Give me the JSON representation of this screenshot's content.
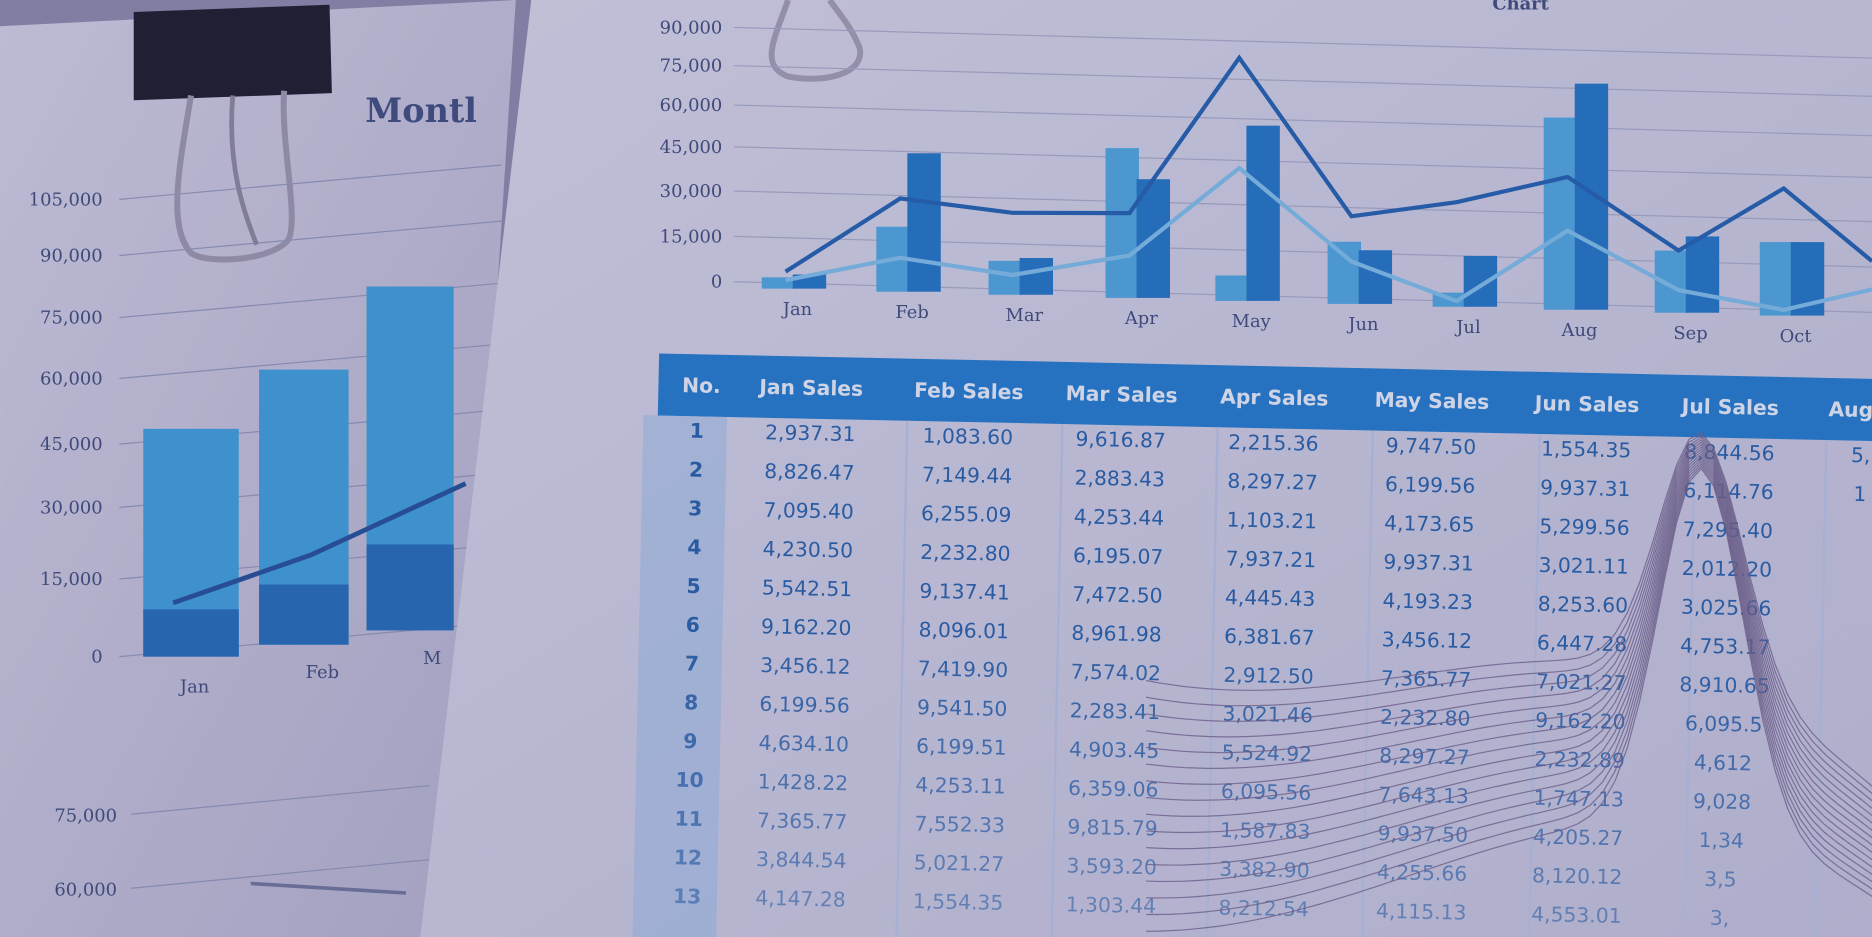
{
  "left_sheet": {
    "title": "Montl",
    "y_ticks": [
      "105,000",
      "90,000",
      "75,000",
      "60,000",
      "45,000",
      "30,000",
      "15,000",
      "0"
    ],
    "x_ticks": [
      "Jan",
      "Feb",
      "M"
    ],
    "lower_y_ticks": [
      "75,000",
      "60,000"
    ],
    "bars": [
      {
        "month": "Jan",
        "total": 53000,
        "lower": 11000
      },
      {
        "month": "Feb",
        "total": 64000,
        "lower": 14000
      },
      {
        "month": "Mar",
        "total": 80000,
        "lower": 20000
      }
    ],
    "colors": {
      "bar_light": "#3aa0dc",
      "bar_dark": "#1d6cb8",
      "line": "#1d4f96"
    }
  },
  "right_sheet": {
    "title": "Chart",
    "y_ticks": [
      "90,000",
      "75,000",
      "60,000",
      "45,000",
      "30,000",
      "15,000",
      "0"
    ],
    "x_ticks": [
      "Jan",
      "Feb",
      "Mar",
      "Apr",
      "May",
      "Jun",
      "Jul",
      "Aug",
      "Sep",
      "Oct"
    ],
    "series_light_bars": [
      4000,
      23000,
      12000,
      53000,
      9000,
      22000,
      5000,
      68000,
      22000,
      26000
    ],
    "series_dark_bars": [
      5000,
      49000,
      13000,
      42000,
      62000,
      19000,
      18000,
      80000,
      27000,
      26000
    ],
    "series_dark_line": [
      6000,
      33000,
      29000,
      30000,
      86000,
      31000,
      37000,
      47000,
      22000,
      45000
    ],
    "series_light_line": [
      3000,
      12000,
      7000,
      15000,
      47000,
      15000,
      2000,
      28000,
      8000,
      2000
    ],
    "colors": {
      "bar_light": "#4aa8e0",
      "bar_dark": "#1a74c4",
      "line_dark": "#1a5fae",
      "line_light": "#7cc0ea"
    }
  },
  "table": {
    "headers": [
      "No.",
      "Jan Sales",
      "Feb Sales",
      "Mar Sales",
      "Apr Sales",
      "May Sales",
      "Jun Sales",
      "Jul Sales",
      "Aug S"
    ],
    "rows": [
      [
        "1",
        "2,937.31",
        "1,083.60",
        "9,616.87",
        "2,215.36",
        "9,747.50",
        "1,554.35",
        "8,844.56",
        "5,"
      ],
      [
        "2",
        "8,826.47",
        "7,149.44",
        "2,883.43",
        "8,297.27",
        "6,199.56",
        "9,937.31",
        "6,114.76",
        "1"
      ],
      [
        "3",
        "7,095.40",
        "6,255.09",
        "4,253.44",
        "1,103.21",
        "4,173.65",
        "5,299.56",
        "7,295.40",
        ""
      ],
      [
        "4",
        "4,230.50",
        "2,232.80",
        "6,195.07",
        "7,937.21",
        "9,937.31",
        "3,021.11",
        "2,012.20",
        ""
      ],
      [
        "5",
        "5,542.51",
        "9,137.41",
        "7,472.50",
        "4,445.43",
        "4,193.23",
        "8,253.60",
        "3,025.66",
        ""
      ],
      [
        "6",
        "9,162.20",
        "8,096.01",
        "8,961.98",
        "6,381.67",
        "3,456.12",
        "6,447.28",
        "4,753.17",
        ""
      ],
      [
        "7",
        "3,456.12",
        "7,419.90",
        "7,574.02",
        "2,912.50",
        "7,365.77",
        "7,021.27",
        "8,910.65",
        ""
      ],
      [
        "8",
        "6,199.56",
        "9,541.50",
        "2,283.41",
        "3,021.46",
        "2,232.80",
        "9,162.20",
        "6,095.5",
        ""
      ],
      [
        "9",
        "4,634.10",
        "6,199.51",
        "4,903.45",
        "5,524.92",
        "8,297.27",
        "2,232.89",
        "4,612",
        ""
      ],
      [
        "10",
        "1,428.22",
        "4,253.11",
        "6,359.06",
        "6,095.56",
        "7,643.13",
        "1,747.13",
        "9,028",
        ""
      ],
      [
        "11",
        "7,365.77",
        "7,552.33",
        "9,815.79",
        "1,587.83",
        "9,937.50",
        "4,205.27",
        "1,34",
        ""
      ],
      [
        "12",
        "3,844.54",
        "5,021.27",
        "3,593.20",
        "3,382.90",
        "4,255.66",
        "8,120.12",
        "3,5",
        ""
      ],
      [
        "13",
        "4,147.28",
        "1,554.35",
        "1,303.44",
        "8,212.54",
        "4,115.13",
        "4,553.01",
        "3,",
        ""
      ]
    ],
    "colors": {
      "header_bg": "#1b7bcc",
      "first_col_bg": "#9cc0e4",
      "text": "#1f5fa8"
    }
  },
  "overlay_color": "#5a4e8c"
}
